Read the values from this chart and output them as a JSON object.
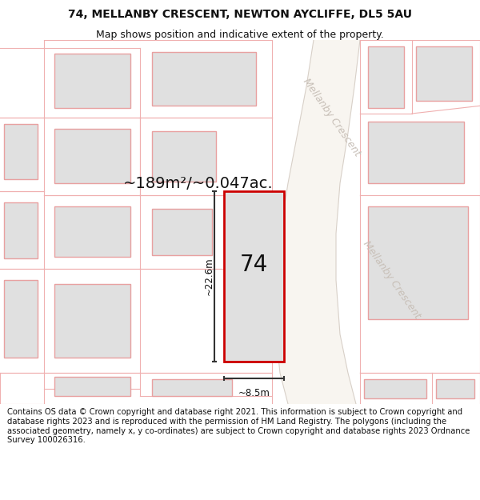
{
  "title_line1": "74, MELLANBY CRESCENT, NEWTON AYCLIFFE, DL5 5AU",
  "title_line2": "Map shows position and indicative extent of the property.",
  "footer_text": "Contains OS data © Crown copyright and database right 2021. This information is subject to Crown copyright and database rights 2023 and is reproduced with the permission of HM Land Registry. The polygons (including the associated geometry, namely x, y co-ordinates) are subject to Crown copyright and database rights 2023 Ordnance Survey 100026316.",
  "area_label": "~189m²/~0.047ac.",
  "property_number": "74",
  "dim_height": "~22.6m",
  "dim_width": "~8.5m",
  "road_label_top": "Mellanby Crescent",
  "road_label_bottom": "Mellanby Crescent",
  "bg_color": "#ffffff",
  "map_bg": "#ffffff",
  "building_fill": "#e0e0e0",
  "building_stroke": "#e8a0a0",
  "parcel_stroke": "#f0b0b0",
  "subject_fill": "#e0e0e0",
  "subject_stroke": "#cc0000",
  "road_label_color": "#c8c0b8",
  "dim_line_color": "#333333",
  "text_color": "#111111",
  "title_fontsize": 10,
  "subtitle_fontsize": 9,
  "footer_fontsize": 7.2,
  "area_fontsize": 14,
  "number_fontsize": 20,
  "dim_fontsize": 8.5,
  "road_fontsize": 9
}
